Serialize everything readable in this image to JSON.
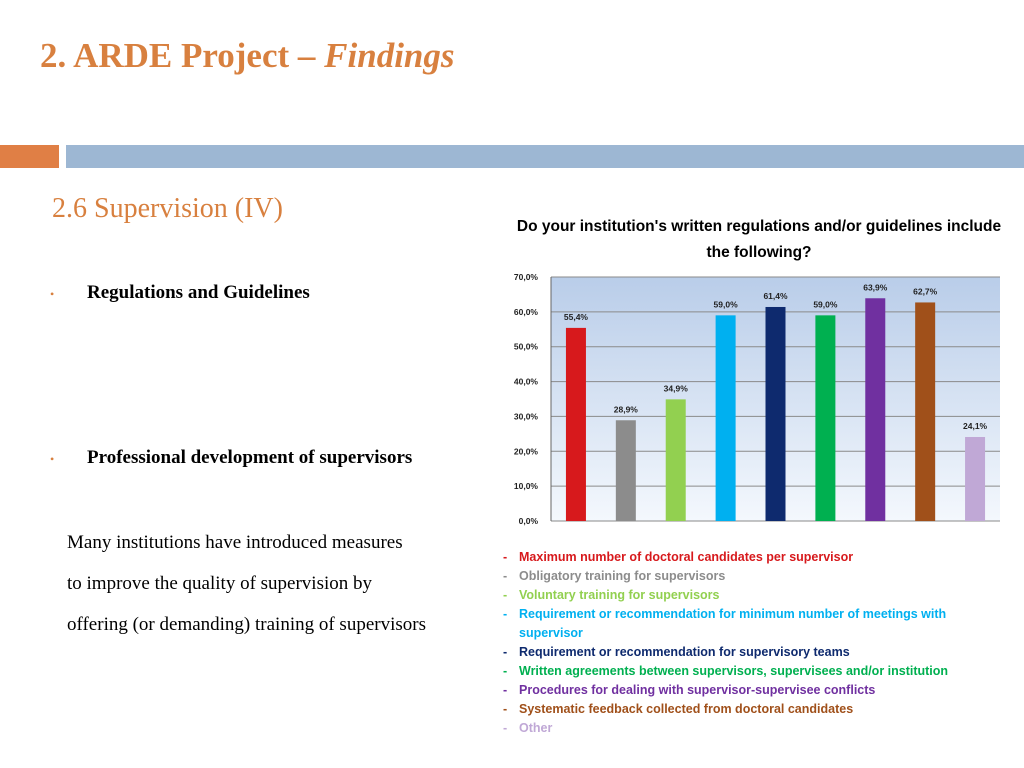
{
  "slide": {
    "title_prefix": "2. ARDE Project – ",
    "title_italic": "Findings",
    "subtitle": "2.6 Supervision (IV)",
    "bullet_symbol": "•",
    "bullets": [
      "Regulations and Guidelines",
      "Professional development of  supervisors"
    ],
    "body_lines": [
      "Many institutions have introduced measures",
      "to improve the quality of supervision by",
      "offering (or demanding) training of supervisors"
    ],
    "accent_color": "#d8803f"
  },
  "chart_data": {
    "type": "bar",
    "title_lines": [
      "Do your institution's written regulations and/or guidelines include",
      "the following?"
    ],
    "categories": [
      "Maximum number of doctoral candidates per supervisor",
      "Obligatory training for supervisors",
      "Voluntary training for supervisors",
      "Requirement or recommendation for minimum number of meetings with supervisor",
      "Requirement or recommendation for supervisory teams",
      "Written agreements between supervisors, supervisees and/or institution",
      "Procedures for dealing with supervisor-supervisee conflicts",
      "Systematic feedback collected from doctoral candidates",
      "Other"
    ],
    "values": [
      55.4,
      28.9,
      34.9,
      59.0,
      61.4,
      59.0,
      63.9,
      62.7,
      24.1
    ],
    "value_labels": [
      "55,4%",
      "28,9%",
      "34,9%",
      "59,0%",
      "61,4%",
      "59,0%",
      "63,9%",
      "62,7%",
      "24,1%"
    ],
    "colors": [
      "#d7191c",
      "#8c8c8c",
      "#92d050",
      "#00b0f0",
      "#0e2a6e",
      "#00b050",
      "#7030a0",
      "#a0501a",
      "#c0a8d6"
    ],
    "ylim": [
      0,
      70
    ],
    "yticks": [
      0,
      10,
      20,
      30,
      40,
      50,
      60,
      70
    ],
    "ytick_labels": [
      "0,0%",
      "10,0%",
      "20,0%",
      "30,0%",
      "40,0%",
      "50,0%",
      "60,0%",
      "70,0%"
    ],
    "grid": true,
    "legend_position": "bottom",
    "legend_marker": "-",
    "legend_lines": [
      [
        "Maximum number of doctoral candidates per supervisor"
      ],
      [
        "Obligatory training for supervisors"
      ],
      [
        "Voluntary training for supervisors"
      ],
      [
        "Requirement or recommendation for minimum number of meetings with",
        "supervisor"
      ],
      [
        "Requirement or recommendation for supervisory teams"
      ],
      [
        "Written agreements between supervisors, supervisees and/or institution"
      ],
      [
        "Procedures for dealing with supervisor-supervisee conflicts"
      ],
      [
        "Systematic feedback collected from doctoral candidates"
      ],
      [
        "Other"
      ]
    ]
  }
}
